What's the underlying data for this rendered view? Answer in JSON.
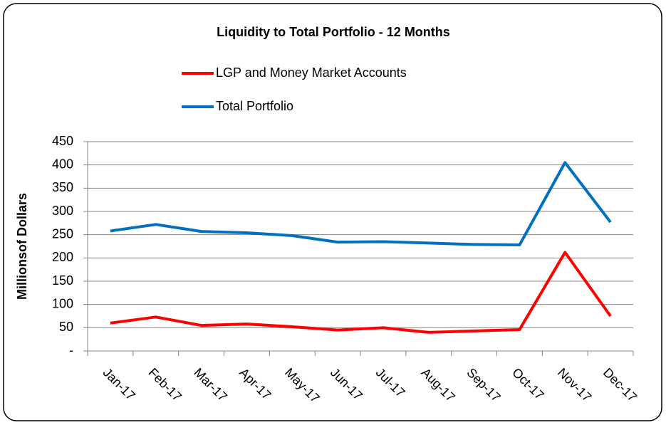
{
  "chart_data": {
    "type": "line",
    "title": "Liquidity to Total Portfolio - 12 Months",
    "y_label": "Millionsof Dollars",
    "categories": [
      "Jan-17",
      "Feb-17",
      "Mar-17",
      "Apr-17",
      "May-17",
      "Jun-17",
      "Jul-17",
      "Aug-17",
      "Sep-17",
      "Oct-17",
      "Nov-17",
      "Dec-17"
    ],
    "series": [
      {
        "name": "LGP and Money Market Accounts",
        "color": "#ff0000",
        "values": [
          60,
          73,
          55,
          58,
          52,
          45,
          50,
          40,
          43,
          46,
          212,
          75
        ]
      },
      {
        "name": "Total Portfolio",
        "color": "#0070c0",
        "values": [
          258,
          272,
          257,
          254,
          248,
          234,
          235,
          232,
          229,
          228,
          405,
          277
        ]
      }
    ],
    "ylim": [
      0,
      450
    ],
    "yticks": [
      {
        "value": 0,
        "label": "-"
      },
      50,
      100,
      150,
      200,
      250,
      300,
      350,
      400,
      450
    ],
    "grid": true,
    "legend": "top"
  }
}
